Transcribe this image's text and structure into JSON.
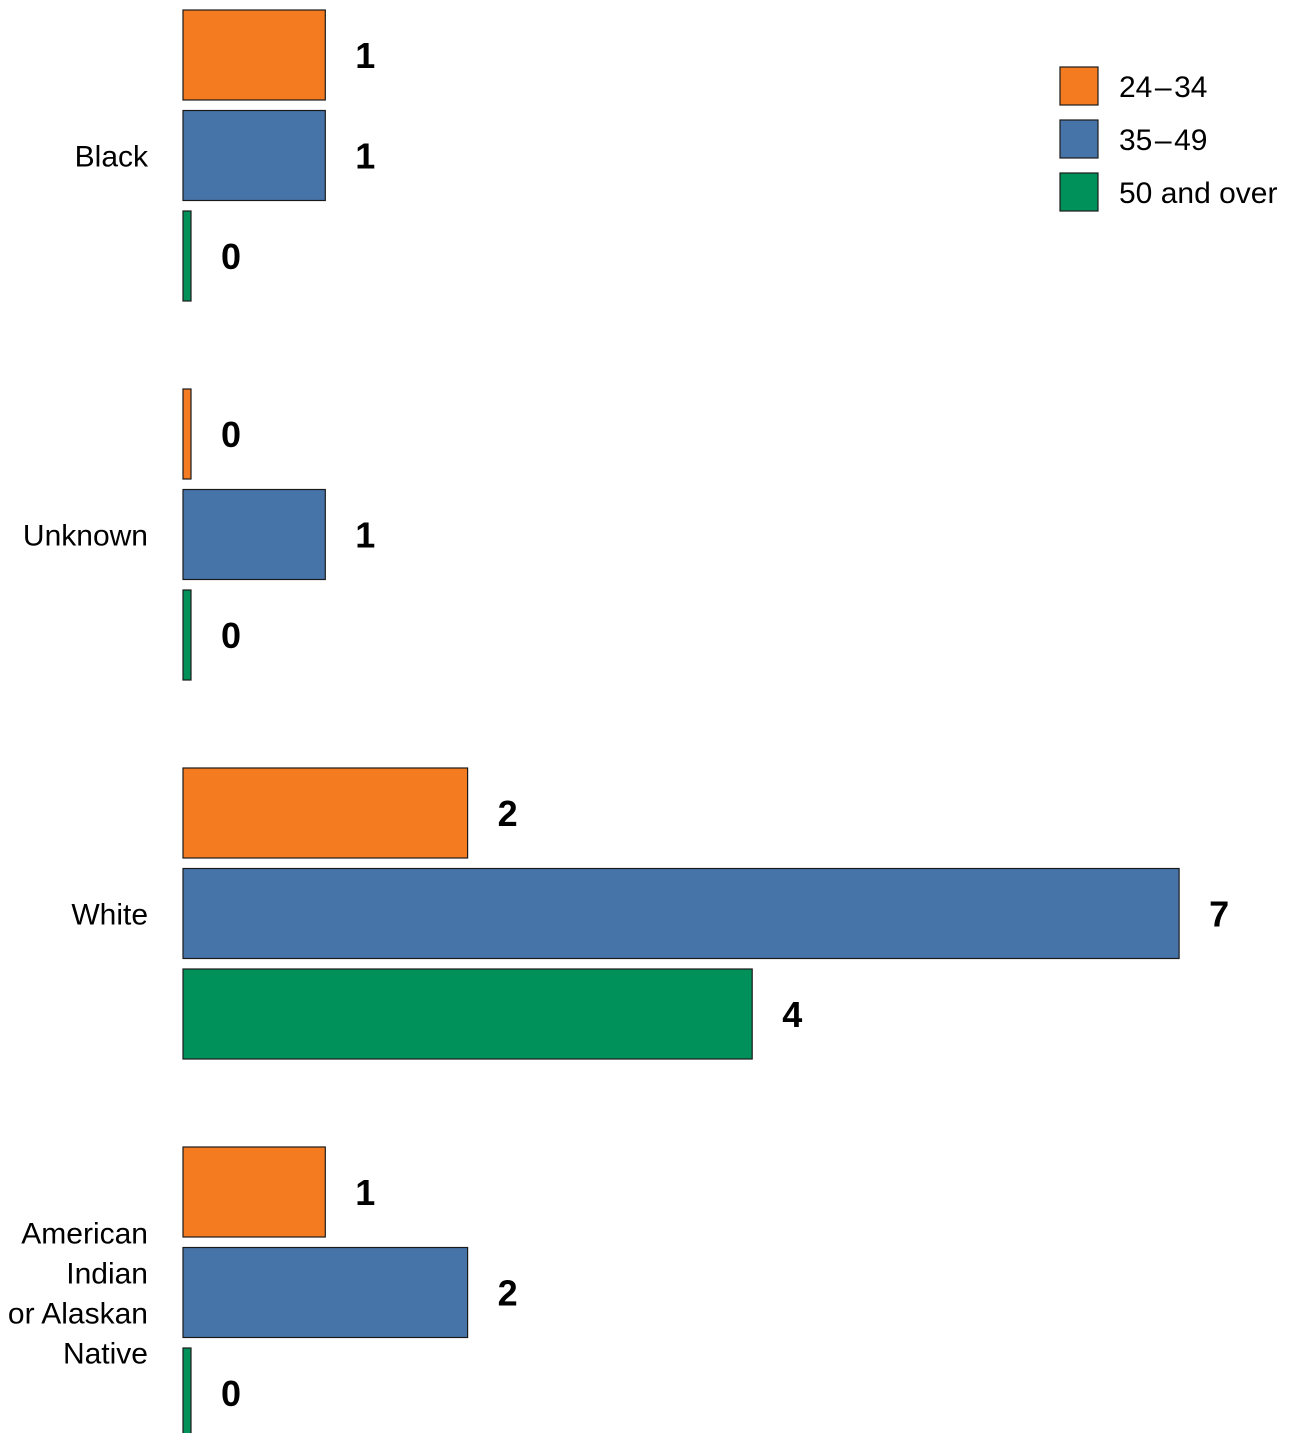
{
  "chart_data": {
    "type": "bar",
    "orientation": "horizontal",
    "title": "",
    "xlabel": "",
    "ylabel": "",
    "categories": [
      [
        "Black"
      ],
      [
        "Unknown"
      ],
      [
        "White"
      ],
      [
        "American",
        "Indian",
        "or Alaskan",
        "Native"
      ]
    ],
    "series": [
      {
        "name": "24 – 34",
        "color": "#F47B20",
        "values": [
          1,
          0,
          2,
          1
        ]
      },
      {
        "name": "35 – 49",
        "color": "#4673A8",
        "values": [
          1,
          1,
          7,
          2
        ]
      },
      {
        "name": "50 and over",
        "color": "#00905A",
        "values": [
          0,
          0,
          4,
          0
        ]
      }
    ],
    "xlim": [
      0,
      7
    ],
    "grid": false,
    "legend_position": "top-right"
  }
}
